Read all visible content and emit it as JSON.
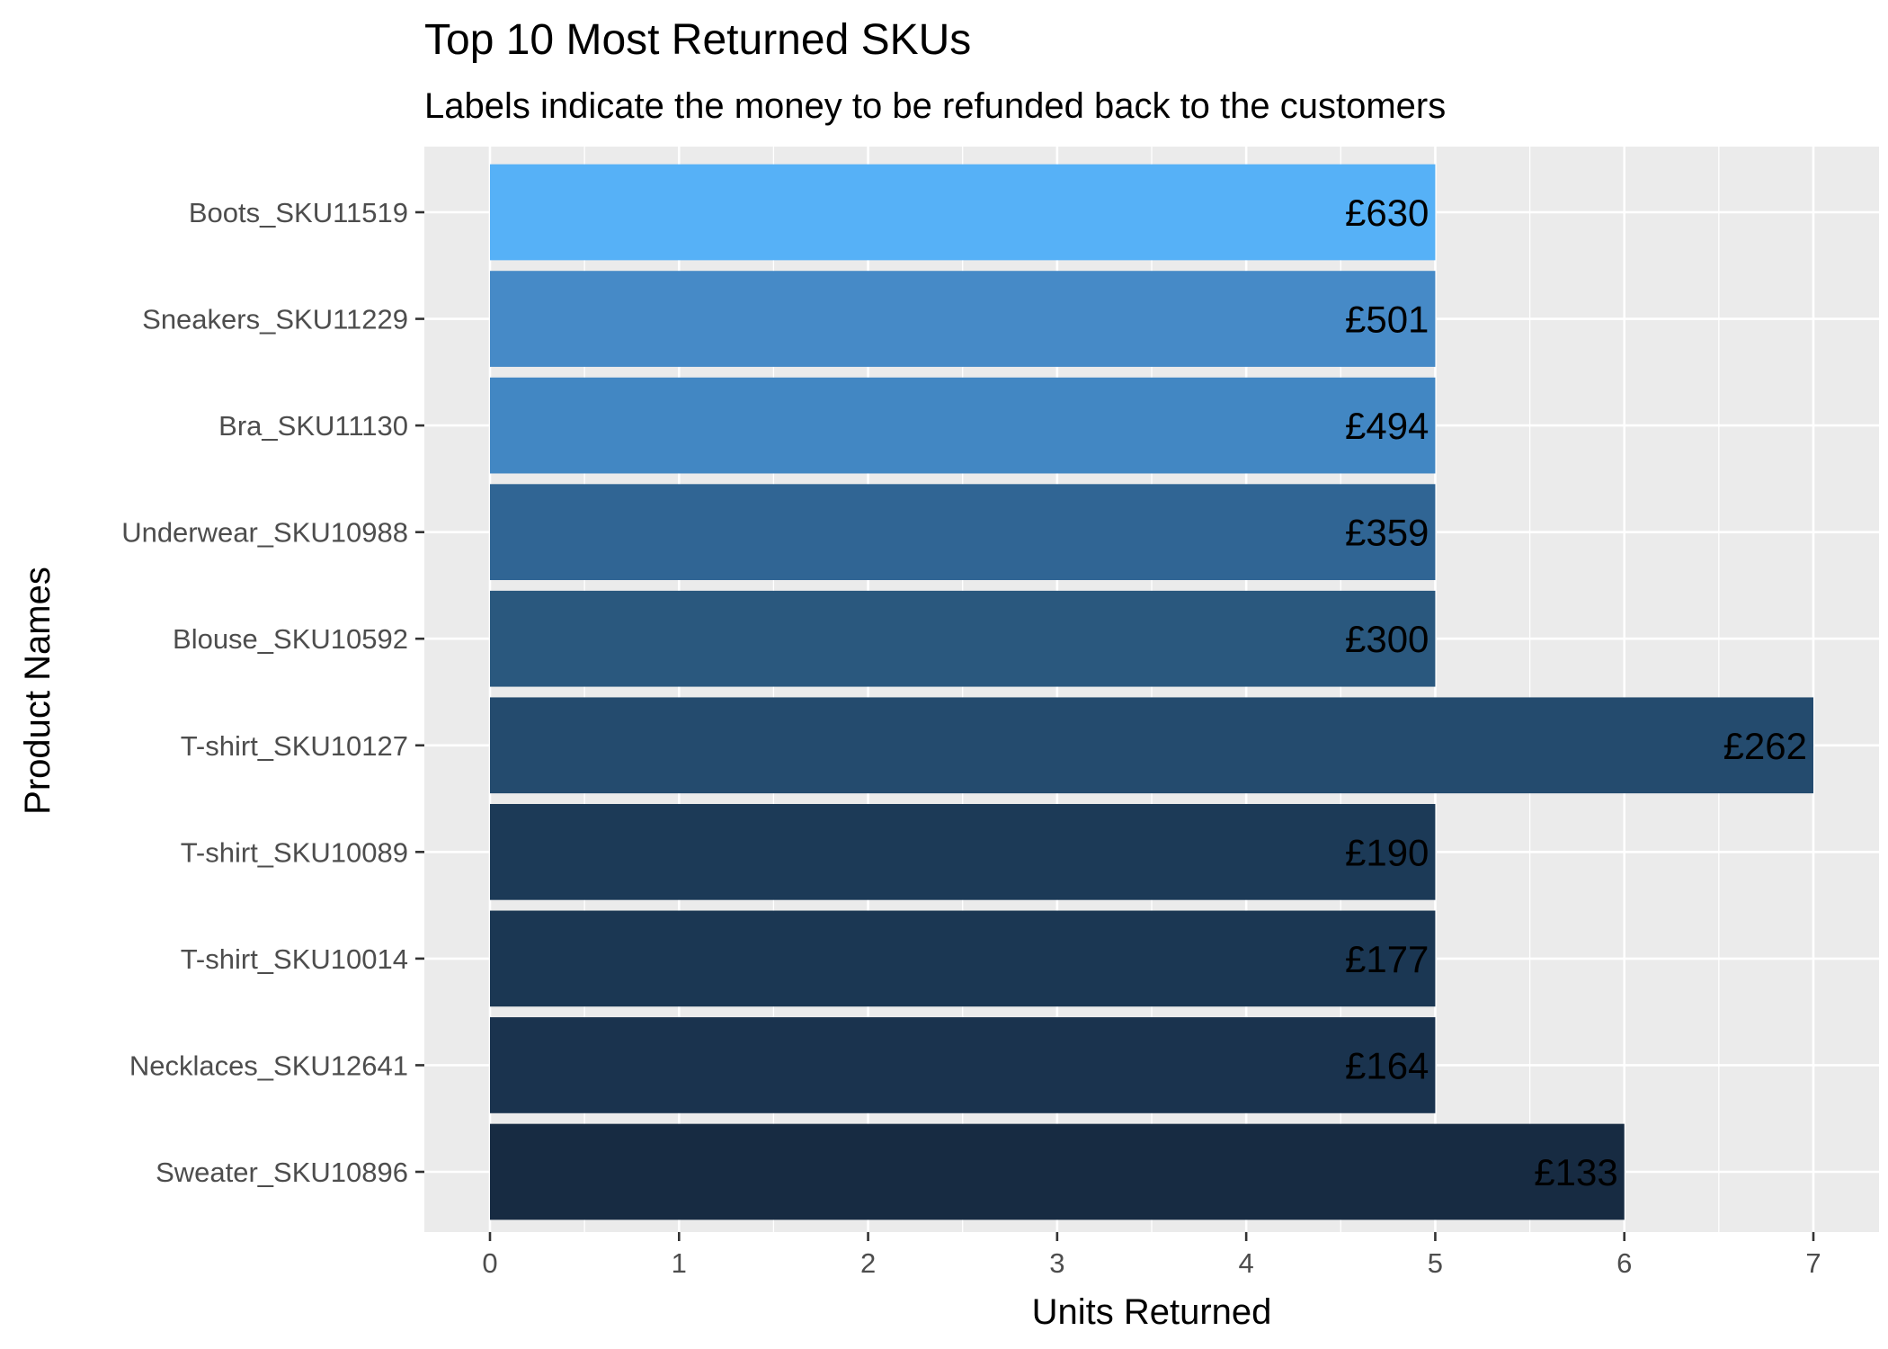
{
  "chart_data": {
    "type": "bar",
    "orientation": "horizontal",
    "title": "Top 10 Most Returned SKUs",
    "subtitle": "Labels indicate the money to be refunded back to the customers",
    "xlabel": "Units Returned",
    "ylabel": "Product Names",
    "xlim": [
      0,
      7
    ],
    "x_ticks": [
      0,
      1,
      2,
      3,
      4,
      5,
      6,
      7
    ],
    "grid": true,
    "legend": "none",
    "panel_background": "#ebebeb",
    "gridline_color": "#ffffff",
    "categories": [
      "Boots_SKU11519",
      "Sneakers_SKU11229",
      "Bra_SKU11130",
      "Underwear_SKU10988",
      "Blouse_SKU10592",
      "T-shirt_SKU10127",
      "T-shirt_SKU10089",
      "T-shirt_SKU10014",
      "Necklaces_SKU12641",
      "Sweater_SKU10896"
    ],
    "values": [
      5,
      5,
      5,
      5,
      5,
      7,
      5,
      5,
      5,
      6
    ],
    "labels": [
      "£630",
      "£501",
      "£494",
      "£359",
      "£300",
      "£262",
      "£190",
      "£177",
      "£164",
      "£133"
    ],
    "colors": [
      "#56b1f7",
      "#468ac7",
      "#4287c3",
      "#306594",
      "#2a587e",
      "#244b6e",
      "#1c3a57",
      "#1b3753",
      "#1a334e",
      "#172b42"
    ]
  }
}
